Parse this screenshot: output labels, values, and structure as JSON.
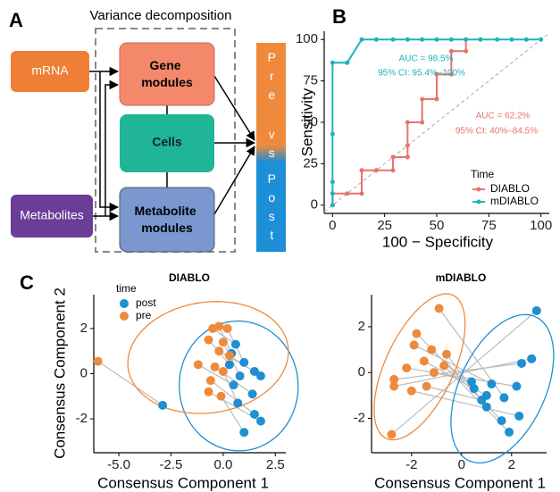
{
  "diagram": {
    "label": "A",
    "title": "Variance decomposition",
    "nodes": {
      "mrna": "mRNA",
      "gene_modules": [
        "Gene",
        "modules"
      ],
      "cells": "Cells",
      "metabolite_modules": [
        "Metabolite",
        "modules"
      ],
      "metabolites": "Metabolites"
    },
    "outcome": {
      "top": "Pre",
      "middle": "vs",
      "bottom": "Post"
    }
  },
  "chart_data": [
    {
      "type": "line",
      "panel_label": "B",
      "xlabel": "100 − Specificity",
      "ylabel": "Sensitivity",
      "xlim": [
        -4,
        104
      ],
      "ylim": [
        -5,
        105
      ],
      "xticks": [
        0,
        25,
        50,
        75,
        100
      ],
      "yticks": [
        0,
        25,
        50,
        75,
        100
      ],
      "diagonal": true,
      "legend_title": "Time",
      "series": [
        {
          "name": "DIABLO",
          "color": "#e8736c",
          "x": [
            0,
            0,
            7,
            14,
            14,
            21,
            29,
            29,
            36,
            36,
            36,
            43,
            43,
            50,
            50,
            57,
            57,
            64,
            64
          ],
          "values": [
            0,
            7,
            7,
            7,
            21,
            21,
            21,
            29,
            29,
            36,
            50,
            50,
            64,
            64,
            79,
            79,
            93,
            93,
            100
          ]
        },
        {
          "name": "mDIABLO",
          "color": "#1db3b8",
          "x": [
            0,
            0,
            0,
            0,
            0,
            7,
            7,
            14,
            21,
            29,
            36,
            43,
            50,
            57,
            64,
            71,
            79,
            86,
            93,
            100
          ],
          "values": [
            0,
            7,
            14,
            43,
            86,
            86,
            86,
            100,
            100,
            100,
            100,
            100,
            100,
            100,
            100,
            100,
            100,
            100,
            100,
            100
          ]
        }
      ],
      "annotations": [
        {
          "text": "AUC = 98.5%",
          "color": "#1db3b8"
        },
        {
          "text": "95% CI: 95.4%–100%",
          "color": "#1db3b8"
        },
        {
          "text": "AUC = 62.2%",
          "color": "#e8736c"
        },
        {
          "text": "95% CI: 40%–84.5%",
          "color": "#e8736c"
        }
      ]
    },
    {
      "type": "scatter",
      "panel_label": "C",
      "title": "DIABLO",
      "xlabel": "Consensus Component 1",
      "ylabel": "Consensus Component 2",
      "xlim": [
        -6.2,
        3.0
      ],
      "ylim": [
        -3.5,
        3.5
      ],
      "xticks": [
        {
          "value": -5,
          "label": "-5.0"
        },
        -2.5,
        {
          "value": 0,
          "label": "0.0"
        },
        2.5
      ],
      "yticks": [
        -2,
        0,
        2
      ],
      "pair_lines": true,
      "ellipses": true,
      "legend_title": "time",
      "series": [
        {
          "name": "post",
          "color": "#1f8fd1",
          "x": [
            -2.9,
            0.6,
            0.4,
            1.0,
            0.3,
            0.8,
            1.5,
            1.8,
            0.5,
            1.4,
            0.7,
            1.5,
            1.8,
            1.0
          ],
          "values": [
            -1.4,
            1.3,
            0.9,
            0.5,
            0.4,
            -0.1,
            0.1,
            -0.1,
            -0.5,
            -0.9,
            -1.3,
            -1.8,
            -2.1,
            -2.6
          ]
        },
        {
          "name": "pre",
          "color": "#ee8a3c",
          "x": [
            -6.0,
            -0.5,
            -0.2,
            0.2,
            -0.7,
            0.0,
            -0.2,
            0.3,
            -1.2,
            -0.4,
            0.0,
            -0.6,
            -0.7,
            -0.1
          ],
          "values": [
            0.55,
            2.0,
            2.1,
            2.0,
            1.5,
            1.4,
            1.0,
            0.8,
            0.4,
            0.3,
            0.1,
            -0.3,
            -0.8,
            -1.0
          ]
        }
      ]
    },
    {
      "type": "scatter",
      "title": "mDIABLO",
      "xlabel": "Consensus Component 1",
      "xlim": [
        -3.6,
        3.4
      ],
      "ylim": [
        -3.5,
        3.4
      ],
      "xticks": [
        -2,
        0,
        2
      ],
      "yticks": [
        -2,
        0,
        2
      ],
      "pair_lines": true,
      "ellipses": true,
      "series": [
        {
          "color": "#1f8fd1",
          "x": [
            3.0,
            2.8,
            2.4,
            2.2,
            2.3,
            1.6,
            1.2,
            1.0,
            0.8,
            0.5,
            0.4,
            1.7,
            1.9,
            1.0
          ],
          "values": [
            2.7,
            0.6,
            0.4,
            -0.6,
            -1.9,
            -2.1,
            -0.5,
            -1.0,
            -1.2,
            -0.7,
            -0.4,
            -1.1,
            -2.6,
            -1.5
          ]
        },
        {
          "color": "#ee8a3c",
          "x": [
            -2.8,
            -2.7,
            -2.7,
            -2.2,
            -2.0,
            -1.8,
            -1.9,
            -1.5,
            -1.4,
            -1.2,
            -1.1,
            -0.9,
            -0.7,
            -0.6
          ],
          "values": [
            -2.7,
            -0.6,
            -0.3,
            0.2,
            -0.8,
            1.7,
            1.2,
            0.5,
            -0.6,
            1.0,
            0.0,
            2.8,
            0.3,
            0.8
          ]
        }
      ]
    }
  ]
}
